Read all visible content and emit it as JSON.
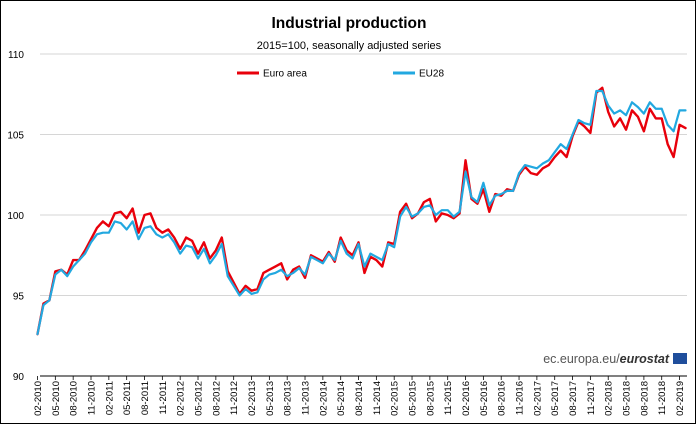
{
  "chart_data": {
    "type": "line",
    "title": "Industrial production",
    "subtitle": "2015=100, seasonally adjusted series",
    "xlabel": "",
    "ylabel": "",
    "ylim": [
      90,
      110
    ],
    "yticks": [
      90,
      95,
      100,
      105,
      110
    ],
    "grid": "horizontal",
    "legend_position": "top-center",
    "xtick_labels": [
      "02-2010",
      "05-2010",
      "08-2010",
      "11-2010",
      "02-2011",
      "05-2011",
      "08-2011",
      "11-2011",
      "02-2012",
      "05-2012",
      "08-2012",
      "11-2012",
      "02-2013",
      "05-2013",
      "08-2013",
      "11-2013",
      "02-2014",
      "05-2014",
      "08-2014",
      "11-2014",
      "02-2015",
      "05-2015",
      "08-2015",
      "11-2015",
      "02-2016",
      "05-2016",
      "08-2016",
      "11-2016",
      "02-2017",
      "05-2017",
      "08-2017",
      "11-2017",
      "02-2018",
      "05-2018",
      "08-2018",
      "11-2018",
      "02-2019"
    ],
    "x_start": "02-2010",
    "x_end": "02-2019",
    "series": [
      {
        "name": "Euro area",
        "color": "#e8000b",
        "values": [
          92.6,
          94.5,
          94.7,
          96.5,
          96.6,
          96.3,
          97.2,
          97.2,
          97.8,
          98.5,
          99.2,
          99.6,
          99.3,
          100.1,
          100.2,
          99.8,
          100.4,
          98.9,
          100.0,
          100.1,
          99.2,
          98.9,
          99.1,
          98.6,
          97.9,
          98.6,
          98.4,
          97.6,
          98.3,
          97.3,
          97.8,
          98.6,
          96.5,
          95.8,
          95.1,
          95.6,
          95.3,
          95.4,
          96.4,
          96.6,
          96.8,
          97.0,
          96.0,
          96.6,
          96.8,
          96.1,
          97.5,
          97.3,
          97.1,
          97.7,
          97.1,
          98.6,
          97.8,
          97.5,
          98.3,
          96.4,
          97.4,
          97.2,
          96.8,
          98.3,
          98.2,
          100.2,
          100.7,
          99.8,
          100.1,
          100.8,
          101.0,
          99.6,
          100.1,
          100.0,
          99.8,
          100.1,
          103.4,
          101.0,
          100.7,
          101.6,
          100.2,
          101.3,
          101.2,
          101.6,
          101.5,
          102.5,
          103.0,
          102.6,
          102.5,
          102.9,
          103.1,
          103.6,
          104.0,
          103.6,
          104.9,
          105.8,
          105.5,
          105.1,
          107.6,
          107.9,
          106.4,
          105.5,
          106.0,
          105.3,
          106.5,
          106.1,
          105.2,
          106.6,
          106.0,
          106.0,
          104.4,
          103.6,
          105.6,
          105.4
        ]
      },
      {
        "name": "EU28",
        "color": "#22a8e0",
        "values": [
          92.6,
          94.4,
          94.7,
          96.3,
          96.6,
          96.2,
          96.8,
          97.2,
          97.6,
          98.3,
          98.8,
          98.9,
          98.9,
          99.6,
          99.5,
          99.1,
          99.6,
          98.5,
          99.2,
          99.3,
          98.8,
          98.6,
          98.8,
          98.3,
          97.6,
          98.1,
          98.0,
          97.3,
          97.9,
          97.0,
          97.5,
          98.2,
          96.2,
          95.6,
          95.0,
          95.4,
          95.1,
          95.2,
          96.0,
          96.3,
          96.4,
          96.6,
          96.2,
          96.4,
          96.7,
          96.3,
          97.4,
          97.2,
          97.0,
          97.6,
          97.2,
          98.4,
          97.6,
          97.3,
          98.2,
          96.8,
          97.6,
          97.4,
          97.2,
          98.2,
          98.0,
          99.9,
          100.5,
          99.9,
          100.1,
          100.5,
          100.6,
          100.0,
          100.3,
          100.3,
          99.9,
          100.2,
          102.7,
          101.1,
          100.8,
          102.0,
          100.6,
          101.2,
          101.3,
          101.5,
          101.5,
          102.6,
          103.1,
          103.0,
          102.9,
          103.2,
          103.4,
          103.9,
          104.4,
          104.1,
          105.0,
          105.9,
          105.7,
          105.6,
          107.7,
          107.7,
          106.8,
          106.3,
          106.5,
          106.2,
          107.0,
          106.7,
          106.3,
          107.0,
          106.6,
          106.6,
          105.6,
          105.2,
          106.5,
          106.5
        ]
      }
    ]
  },
  "source_text": {
    "prefix": "ec.europa.eu/",
    "brand": "eurostat",
    "color": "#555555",
    "brand_color": "#333333",
    "logo_icon": "eurostat-flag-icon",
    "logo_color": "#1f4e9c"
  }
}
